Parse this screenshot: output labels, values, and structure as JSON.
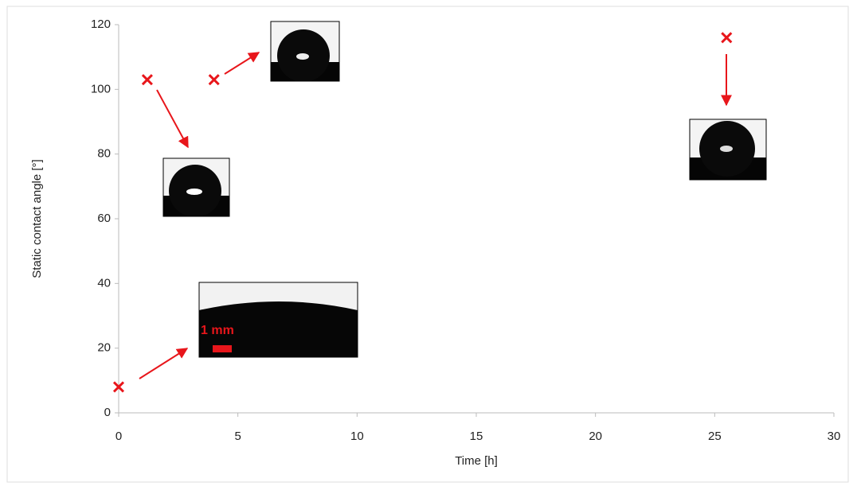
{
  "chart_data": {
    "type": "scatter",
    "x_label": "Time [h]",
    "y_label": "Static contact angle [°]",
    "series": [
      {
        "color": "#e8161b",
        "x": [
          0,
          1.2,
          4,
          25.5
        ],
        "values": [
          8,
          103,
          103,
          116
        ]
      }
    ],
    "xlim": [
      0,
      30
    ],
    "xticks": [
      0,
      5,
      10,
      15,
      20,
      25,
      30
    ],
    "ylim": [
      0,
      120
    ],
    "yticks": [
      0,
      20,
      40,
      60,
      80,
      100,
      120
    ],
    "grid": false,
    "annotations": [
      "1 mm"
    ]
  }
}
